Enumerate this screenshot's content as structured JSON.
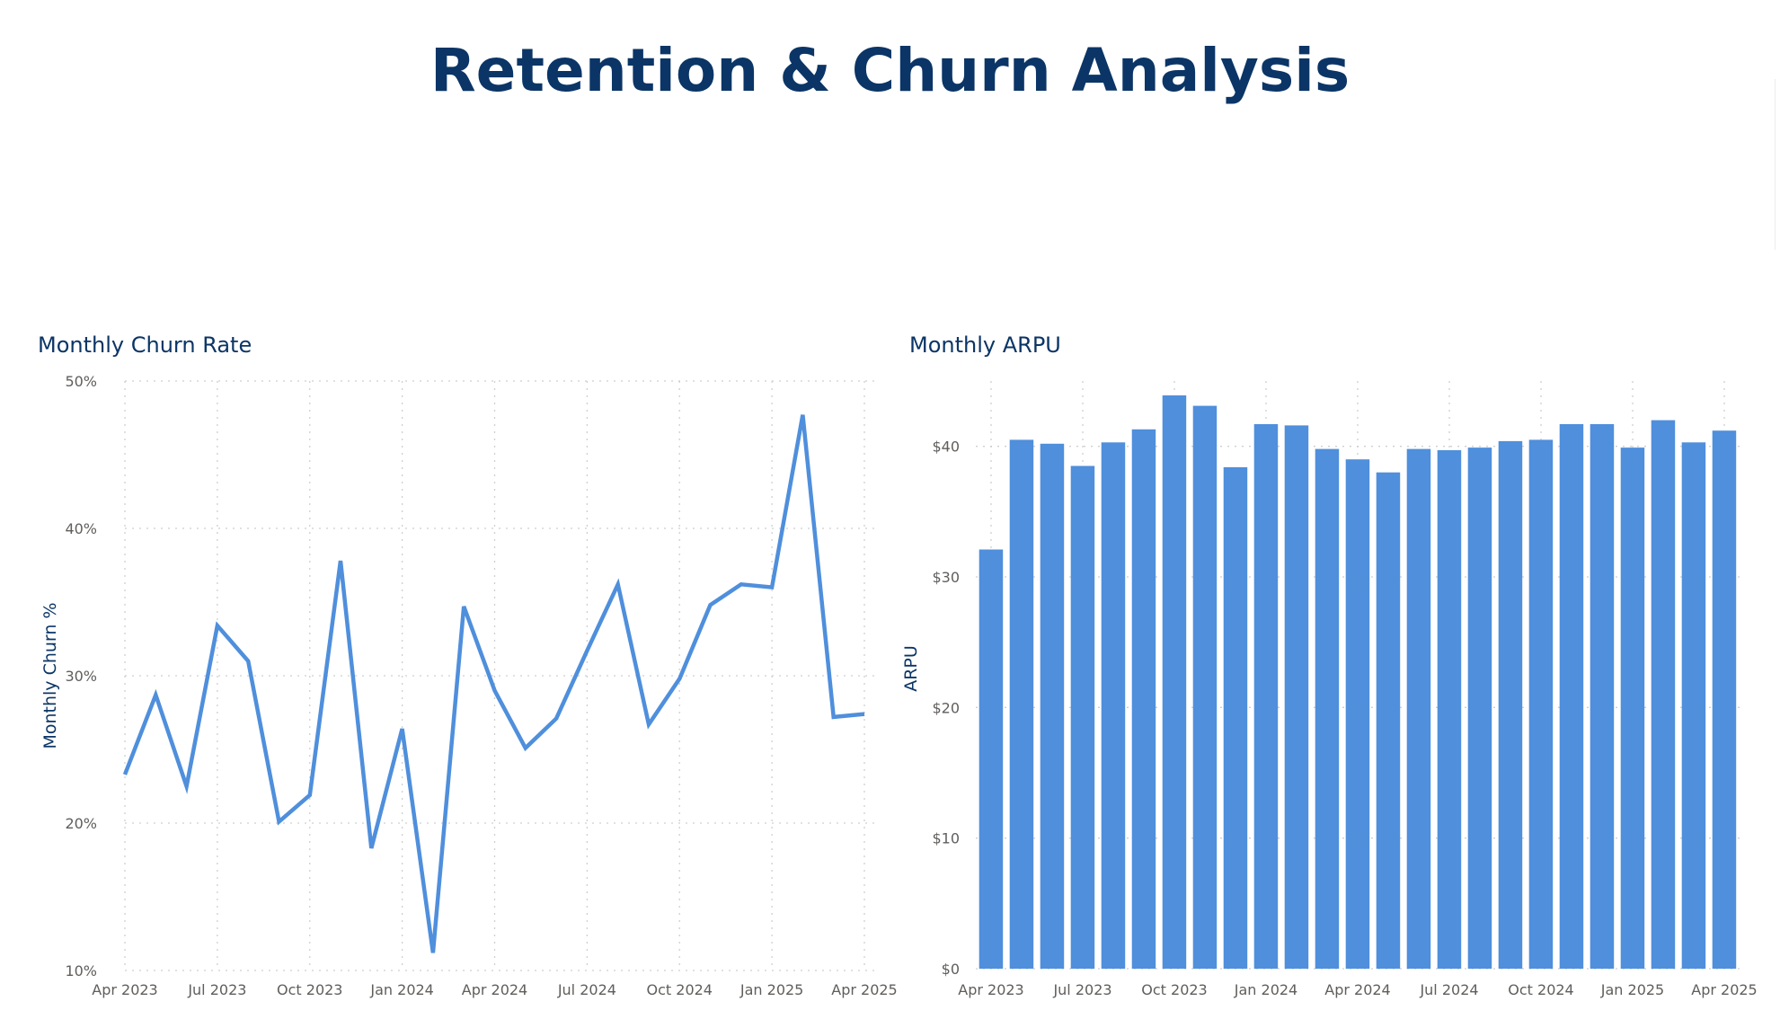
{
  "title": "Retention & Churn Analysis",
  "colors": {
    "title": "#0b3566",
    "series": "#4f8fdc",
    "tick_text": "#605e5c"
  },
  "churn": {
    "title": "Monthly Churn Rate",
    "chart_data": {
      "type": "line",
      "title": "Monthly Churn Rate",
      "xlabel": "",
      "ylabel": "Monthly Churn %",
      "ylim": [
        10,
        50
      ],
      "yticks": [
        "10%",
        "20%",
        "30%",
        "40%",
        "50%"
      ],
      "xticks": [
        "Apr 2023",
        "Jul 2023",
        "Oct 2023",
        "Jan 2024",
        "Apr 2024",
        "Jul 2024",
        "Oct 2024",
        "Jan 2025",
        "Apr 2025"
      ],
      "grid": true,
      "x": [
        "2023-04",
        "2023-05",
        "2023-06",
        "2023-07",
        "2023-08",
        "2023-09",
        "2023-10",
        "2023-11",
        "2023-12",
        "2024-01",
        "2024-02",
        "2024-03",
        "2024-04",
        "2024-05",
        "2024-06",
        "2024-07",
        "2024-08",
        "2024-09",
        "2024-10",
        "2024-11",
        "2024-12",
        "2025-01",
        "2025-02",
        "2025-03",
        "2025-04"
      ],
      "series": [
        {
          "values": [
            23.3,
            28.7,
            22.5,
            33.4,
            31.0,
            20.1,
            21.9,
            37.8,
            18.3,
            26.4,
            11.2,
            34.7,
            29.0,
            25.1,
            27.1,
            31.7,
            36.2,
            26.7,
            29.8,
            34.8,
            36.2,
            36.0,
            47.7,
            27.2,
            27.4
          ]
        }
      ]
    }
  },
  "arpu": {
    "title": "Monthly ARPU",
    "chart_data": {
      "type": "bar",
      "title": "Monthly ARPU",
      "xlabel": "",
      "ylabel": "ARPU",
      "ylim": [
        0,
        45
      ],
      "yticks": [
        "$0",
        "$10",
        "$20",
        "$30",
        "$40"
      ],
      "xticks": [
        "Apr 2023",
        "Jul 2023",
        "Oct 2023",
        "Jan 2024",
        "Apr 2024",
        "Jul 2024",
        "Oct 2024",
        "Jan 2025",
        "Apr 2025"
      ],
      "grid": true,
      "categories": [
        "2023-04",
        "2023-05",
        "2023-06",
        "2023-07",
        "2023-08",
        "2023-09",
        "2023-10",
        "2023-11",
        "2023-12",
        "2024-01",
        "2024-02",
        "2024-03",
        "2024-04",
        "2024-05",
        "2024-06",
        "2024-07",
        "2024-08",
        "2024-09",
        "2024-10",
        "2024-11",
        "2024-12",
        "2025-01",
        "2025-02",
        "2025-03",
        "2025-04"
      ],
      "values": [
        32.1,
        40.5,
        40.2,
        38.5,
        40.3,
        41.3,
        43.9,
        43.1,
        38.4,
        41.7,
        41.6,
        39.8,
        39.0,
        38.0,
        39.8,
        39.7,
        39.9,
        40.4,
        40.5,
        41.7,
        41.7,
        39.9,
        42.0,
        40.3,
        41.2
      ]
    }
  }
}
